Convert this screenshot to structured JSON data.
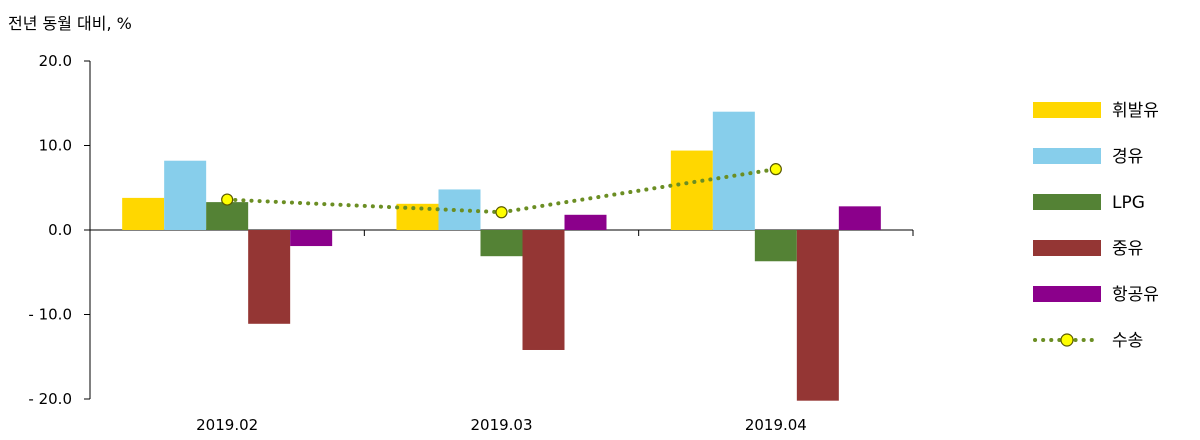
{
  "chart_data": {
    "type": "bar",
    "unit_label": "전년 동월 대비, %",
    "categories": [
      "2019.02",
      "2019.03",
      "2019.04"
    ],
    "ylim": [
      -20,
      20
    ],
    "yticks": [
      20,
      10,
      0,
      -10,
      -20
    ],
    "ytick_labels": [
      "20.0",
      "10.0",
      "0.0",
      "- 10.0",
      "- 20.0"
    ],
    "grid": false,
    "legend_position": "right",
    "series": [
      {
        "name": "휘발유",
        "type": "bar",
        "color": "#FFD700",
        "values": [
          3.8,
          3.1,
          9.4
        ]
      },
      {
        "name": "경유",
        "type": "bar",
        "color": "#87CEEB",
        "values": [
          8.2,
          4.8,
          14.0
        ]
      },
      {
        "name": "LPG",
        "type": "bar",
        "color": "#548235",
        "values": [
          3.3,
          -3.1,
          -3.7
        ]
      },
      {
        "name": "중유",
        "type": "bar",
        "color": "#943634",
        "values": [
          -11.1,
          -14.2,
          -20.2
        ]
      },
      {
        "name": "항공유",
        "type": "bar",
        "color": "#8B008B",
        "values": [
          -1.9,
          1.8,
          2.8
        ]
      },
      {
        "name": "수송",
        "type": "line",
        "color": "#6B8E23",
        "marker_color": "#FFFF00",
        "values": [
          3.6,
          2.1,
          7.2
        ]
      }
    ]
  }
}
